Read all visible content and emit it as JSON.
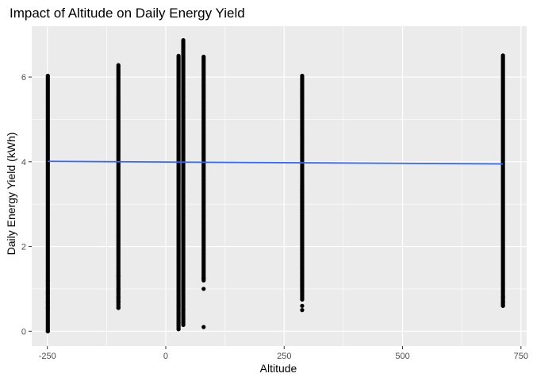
{
  "chart_data": {
    "type": "scatter",
    "title": "Impact of Altitude on Daily Energy Yield",
    "xlabel": "Altitude",
    "ylabel": "Daily Energy Yield (kWh)",
    "xlim": [
      -283,
      762
    ],
    "ylim": [
      -0.35,
      7.2
    ],
    "x_ticks": [
      -250,
      0,
      250,
      500,
      750
    ],
    "x_tick_labels": [
      "-250",
      "0",
      "250",
      "500",
      "750"
    ],
    "y_ticks": [
      0,
      2,
      4,
      6
    ],
    "y_tick_labels": [
      "0",
      "2",
      "4",
      "6"
    ],
    "grid": true,
    "legend": "none",
    "colors": {
      "panel": "#ebebeb",
      "grid": "#ffffff",
      "points": "#000000",
      "trend": "#3366ff"
    },
    "point_columns": [
      {
        "x": -249,
        "ymin": 0.0,
        "ymax": 6.05,
        "outliers": [
          0.0,
          0.55,
          0.7,
          0.9,
          1.2
        ]
      },
      {
        "x": -100,
        "ymin": 0.55,
        "ymax": 6.28,
        "outliers": [
          0.55,
          0.7,
          0.8,
          1.0,
          1.3
        ]
      },
      {
        "x": 27,
        "ymin": 0.05,
        "ymax": 6.5,
        "outliers": [
          0.05,
          0.2,
          0.4,
          0.6
        ]
      },
      {
        "x": 37,
        "ymin": 0.15,
        "ymax": 6.88,
        "outliers": [
          0.15,
          0.3,
          0.5
        ]
      },
      {
        "x": 80,
        "ymin": 1.2,
        "ymax": 6.48,
        "outliers": [
          0.1,
          1.0,
          1.25
        ]
      },
      {
        "x": 288,
        "ymin": 0.75,
        "ymax": 6.05,
        "outliers": [
          0.5,
          0.6,
          0.75
        ]
      },
      {
        "x": 288,
        "ymin": 1.0,
        "ymax": 3.45,
        "outliers": []
      },
      {
        "x": 712,
        "ymin": 0.6,
        "ymax": 6.52,
        "outliers": [
          0.6,
          0.7,
          0.8
        ]
      }
    ],
    "trend_line": {
      "x": [
        -249,
        712
      ],
      "y": [
        4.01,
        3.95
      ]
    }
  }
}
